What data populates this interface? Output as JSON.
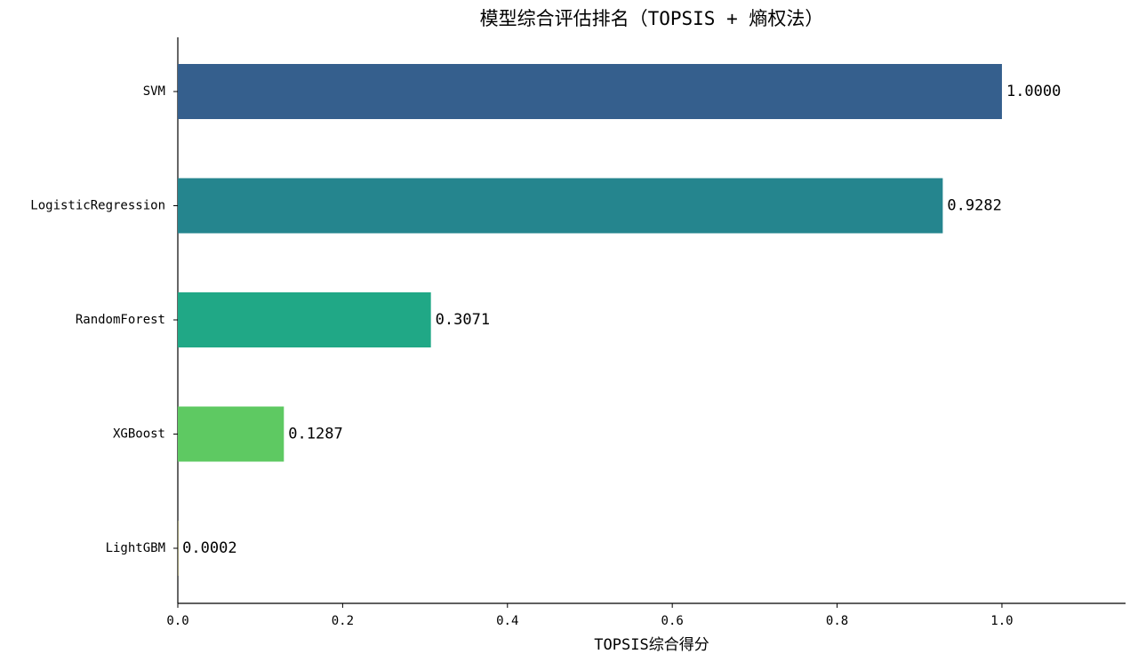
{
  "chart_data": {
    "type": "barh",
    "title": "模型综合评估排名（TOPSIS + 熵权法）",
    "x_label": "TOPSIS综合得分",
    "categories": [
      "SVM",
      "LogisticRegression",
      "RandomForest",
      "XGBoost",
      "LightGBM"
    ],
    "values": [
      1.0,
      0.9282,
      0.3071,
      0.1287,
      0.0002
    ],
    "value_labels": [
      "1.0000",
      "0.9282",
      "0.3071",
      "0.1287",
      "0.0002"
    ],
    "colors": [
      "#355f8d",
      "#25858e",
      "#20a886",
      "#5ec962",
      "#fde725"
    ],
    "xlim": [
      0,
      1.15
    ],
    "xticks": [
      {
        "value": 0,
        "label": "0.0"
      },
      0.2,
      0.4,
      0.6,
      0.8,
      {
        "value": 1,
        "label": "1.0"
      }
    ]
  }
}
